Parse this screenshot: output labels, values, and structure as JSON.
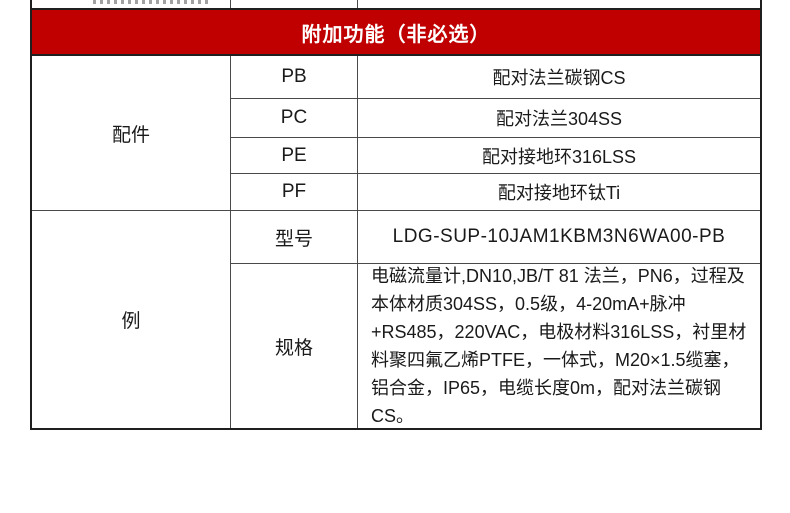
{
  "colors": {
    "header_background": "#c00000",
    "header_text": "#ffffff",
    "outer_border": "#1f1f1f",
    "inner_border": "#4a4a4a",
    "cell_text": "#1a1a1a",
    "page_background": "#ffffff"
  },
  "header": {
    "title": "附加功能（非必选）"
  },
  "table": {
    "sections": [
      {
        "label": "配件",
        "rows": [
          {
            "code": "PB",
            "description": "配对法兰碳钢CS"
          },
          {
            "code": "PC",
            "description": "配对法兰304SS"
          },
          {
            "code": "PE",
            "description": "配对接地环316LSS"
          },
          {
            "code": "PF",
            "description": "配对接地环钛Ti"
          }
        ]
      },
      {
        "label": "例",
        "rows": [
          {
            "code": "型号",
            "description": "LDG-SUP-10JAM1KBM3N6WA00-PB"
          },
          {
            "code": "规格",
            "description": "电磁流量计,DN10,JB/T 81 法兰，PN6，过程及本体材质304SS，0.5级，4-20mA+脉冲+RS485，220VAC，电极材料316LSS，衬里材料聚四氟乙烯PTFE，一体式，M20×1.5缆塞，铝合金，IP65，电缆长度0m，配对法兰碳钢CS。"
          }
        ]
      }
    ]
  }
}
